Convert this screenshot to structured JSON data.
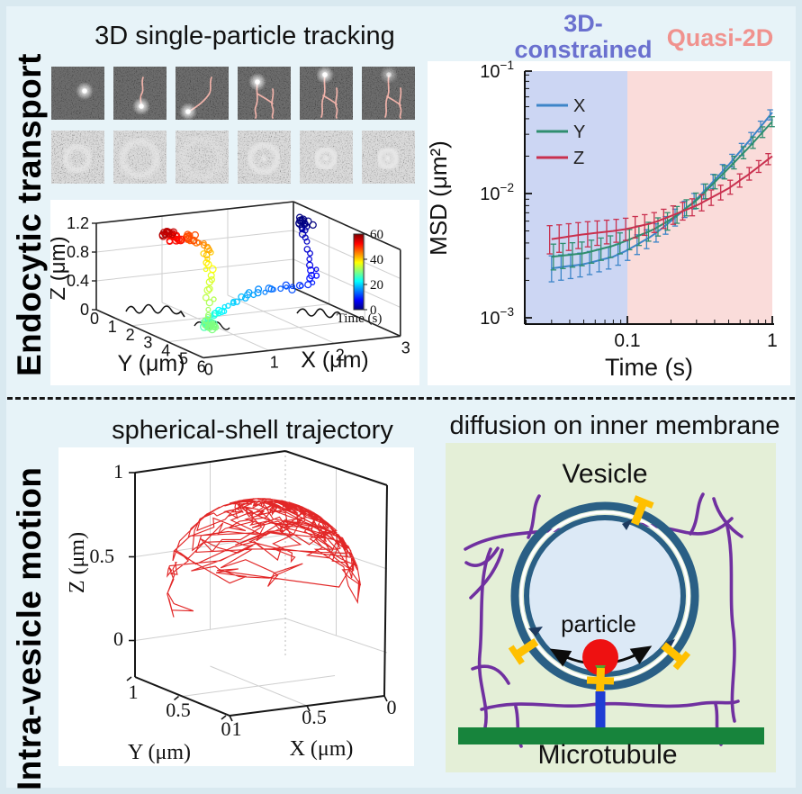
{
  "sections": {
    "top": {
      "side_label": "Endocytic transport",
      "tracking_title": "3D single-particle tracking"
    },
    "bottom": {
      "side_label": "Intra-vesicle motion",
      "shell_title": "spherical-shell trajectory",
      "membrane_title": "diffusion on inner membrane"
    }
  },
  "chart_data": [
    {
      "id": "trajectory3d",
      "type": "scatter",
      "projection": "3d",
      "xlabel": "X (μm)",
      "ylabel": "Y (μm)",
      "zlabel": "Z (μm)",
      "xlim": [
        0,
        3
      ],
      "ylim": [
        0,
        6
      ],
      "zlim": [
        0,
        1.2
      ],
      "x_ticks": [
        "0",
        "1",
        "2",
        "3"
      ],
      "y_ticks": [
        "0",
        "1",
        "2",
        "3",
        "4",
        "5",
        "6"
      ],
      "z_ticks": [
        "0",
        "0.4",
        "0.8",
        "1.2"
      ],
      "colorbar": {
        "label": "Time (s)",
        "ticks": [
          "60",
          "40",
          "20",
          "0"
        ],
        "range": [
          0,
          60
        ],
        "colormap": "jet"
      },
      "floor_projection": "black trace of trajectory on XY plane",
      "trajectory_xyzt": [
        [
          2.95,
          0.8,
          1.02,
          0
        ],
        [
          2.9,
          1.05,
          0.9,
          3
        ],
        [
          2.88,
          1.5,
          0.5,
          6
        ],
        [
          2.82,
          1.65,
          0.27,
          9
        ],
        [
          2.5,
          1.5,
          0.22,
          12
        ],
        [
          2.2,
          1.35,
          0.2,
          15
        ],
        [
          1.85,
          1.3,
          0.14,
          18
        ],
        [
          1.5,
          1.75,
          0.07,
          21
        ],
        [
          1.2,
          2.1,
          0.04,
          24
        ],
        [
          0.95,
          2.8,
          0.02,
          27
        ],
        [
          0.92,
          2.9,
          0.02,
          30
        ],
        [
          1.05,
          2.5,
          0.3,
          33
        ],
        [
          1.18,
          2.05,
          0.6,
          36
        ],
        [
          1.28,
          1.6,
          0.8,
          40
        ],
        [
          1.3,
          1.3,
          0.9,
          44
        ],
        [
          1.1,
          1.1,
          1.0,
          48
        ],
        [
          0.92,
          1.05,
          1.02,
          52
        ],
        [
          0.85,
          0.95,
          1.08,
          56
        ],
        [
          0.78,
          0.9,
          1.1,
          60
        ]
      ]
    },
    {
      "id": "msd",
      "type": "line",
      "xscale": "log",
      "yscale": "log",
      "xlabel": "Time (s)",
      "ylabel": "MSD (μm²)",
      "xlim": [
        0.02,
        1
      ],
      "ylim": [
        0.001,
        0.1
      ],
      "x_ticks": [
        "0.1",
        "1"
      ],
      "y_ticks": [
        "10⁻¹",
        "10⁻²",
        "10⁻³"
      ],
      "error_bars": "capped, ±10–25%",
      "regions": [
        {
          "label": "3D-constrained",
          "trange": [
            0.02,
            0.1
          ],
          "fill": "#ccd6f3",
          "label_color": "#6a70cf"
        },
        {
          "label": "Quasi-2D",
          "trange": [
            0.1,
            1
          ],
          "fill": "#fadcda",
          "label_color": "#f0928e"
        }
      ],
      "series": [
        {
          "name": "X",
          "color": "#3d85c8",
          "points": [
            [
              0.03,
              0.0025
            ],
            [
              0.05,
              0.0027
            ],
            [
              0.08,
              0.0031
            ],
            [
              0.1,
              0.0035
            ],
            [
              0.15,
              0.0046
            ],
            [
              0.2,
              0.006
            ],
            [
              0.3,
              0.009
            ],
            [
              0.5,
              0.017
            ],
            [
              0.7,
              0.027
            ],
            [
              1.0,
              0.045
            ]
          ]
        },
        {
          "name": "Y",
          "color": "#2f8e6f",
          "points": [
            [
              0.03,
              0.0031
            ],
            [
              0.05,
              0.0033
            ],
            [
              0.08,
              0.0038
            ],
            [
              0.1,
              0.0042
            ],
            [
              0.15,
              0.0051
            ],
            [
              0.2,
              0.0062
            ],
            [
              0.3,
              0.0088
            ],
            [
              0.5,
              0.016
            ],
            [
              0.7,
              0.024
            ],
            [
              1.0,
              0.038
            ]
          ]
        },
        {
          "name": "Z",
          "color": "#c9304e",
          "points": [
            [
              0.03,
              0.0043
            ],
            [
              0.05,
              0.0047
            ],
            [
              0.08,
              0.005
            ],
            [
              0.1,
              0.0052
            ],
            [
              0.15,
              0.0058
            ],
            [
              0.2,
              0.0066
            ],
            [
              0.3,
              0.008
            ],
            [
              0.5,
              0.011
            ],
            [
              0.7,
              0.0145
            ],
            [
              1.0,
              0.02
            ]
          ]
        }
      ],
      "legend_position": "upper left"
    },
    {
      "id": "shell",
      "type": "line",
      "projection": "3d",
      "xlabel": "X (μm)",
      "ylabel": "Y (μm)",
      "zlabel": "Z (μm)",
      "xlim": [
        0,
        1
      ],
      "ylim": [
        0,
        1
      ],
      "zlim": [
        0,
        1
      ],
      "x_ticks": [
        "1",
        "0.5",
        "0"
      ],
      "y_ticks": [
        "1",
        "0.5",
        "0"
      ],
      "z_ticks": [
        "1",
        "0.5",
        "0"
      ],
      "line_color": "#e01b1b",
      "description": "dense red random-walk trajectory tracing a spherical shell"
    }
  ],
  "schematic": {
    "vesicle_label": "Vesicle",
    "particle_label": "particle",
    "microtubule_label": "Microtubule",
    "colors": {
      "membrane": "#2a5f85",
      "cytoskeleton": "#7030a0",
      "linker": "#ffc000",
      "particle": "#ee1111",
      "motor": "#1f3dd4",
      "microtubule": "#17843c",
      "panel": "#e4efd7",
      "lumen": "#dce9f6"
    }
  }
}
